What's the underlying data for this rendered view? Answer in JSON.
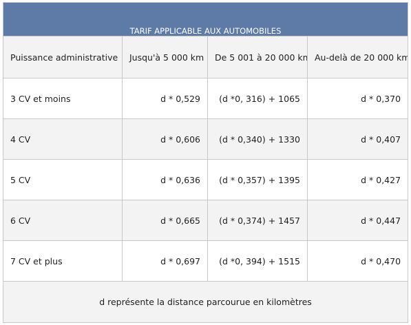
{
  "table": {
    "title": "TARIF APPLICABLE AUX AUTOMOBILES",
    "headers": [
      "Puissance administrative",
      "Jusqu'à 5 000 km",
      "De 5 001 à 20 000 km",
      "Au-delà de 20 000 km"
    ],
    "rows": [
      [
        "3 CV et moins",
        "d * 0,529",
        "(d *0, 316) + 1065",
        "d * 0,370"
      ],
      [
        "4 CV",
        "d * 0,606",
        "(d * 0,340) + 1330",
        "d * 0,407"
      ],
      [
        "5 CV",
        "d * 0,636",
        "(d * 0,357) + 1395",
        "d * 0,427"
      ],
      [
        "6 CV",
        "d * 0,665",
        "(d * 0,374) + 1457",
        "d * 0,447"
      ],
      [
        "7 CV et plus",
        "d * 0,697",
        "(d *0, 394) + 1515",
        "d * 0,470"
      ]
    ],
    "footnote": "d représente la distance parcourue en kilomètres"
  },
  "colors": {
    "title_background": "#5e7aa7",
    "title_text": "#ffffff",
    "band_background": "#f3f3f3",
    "border": "#c8c8c8"
  }
}
